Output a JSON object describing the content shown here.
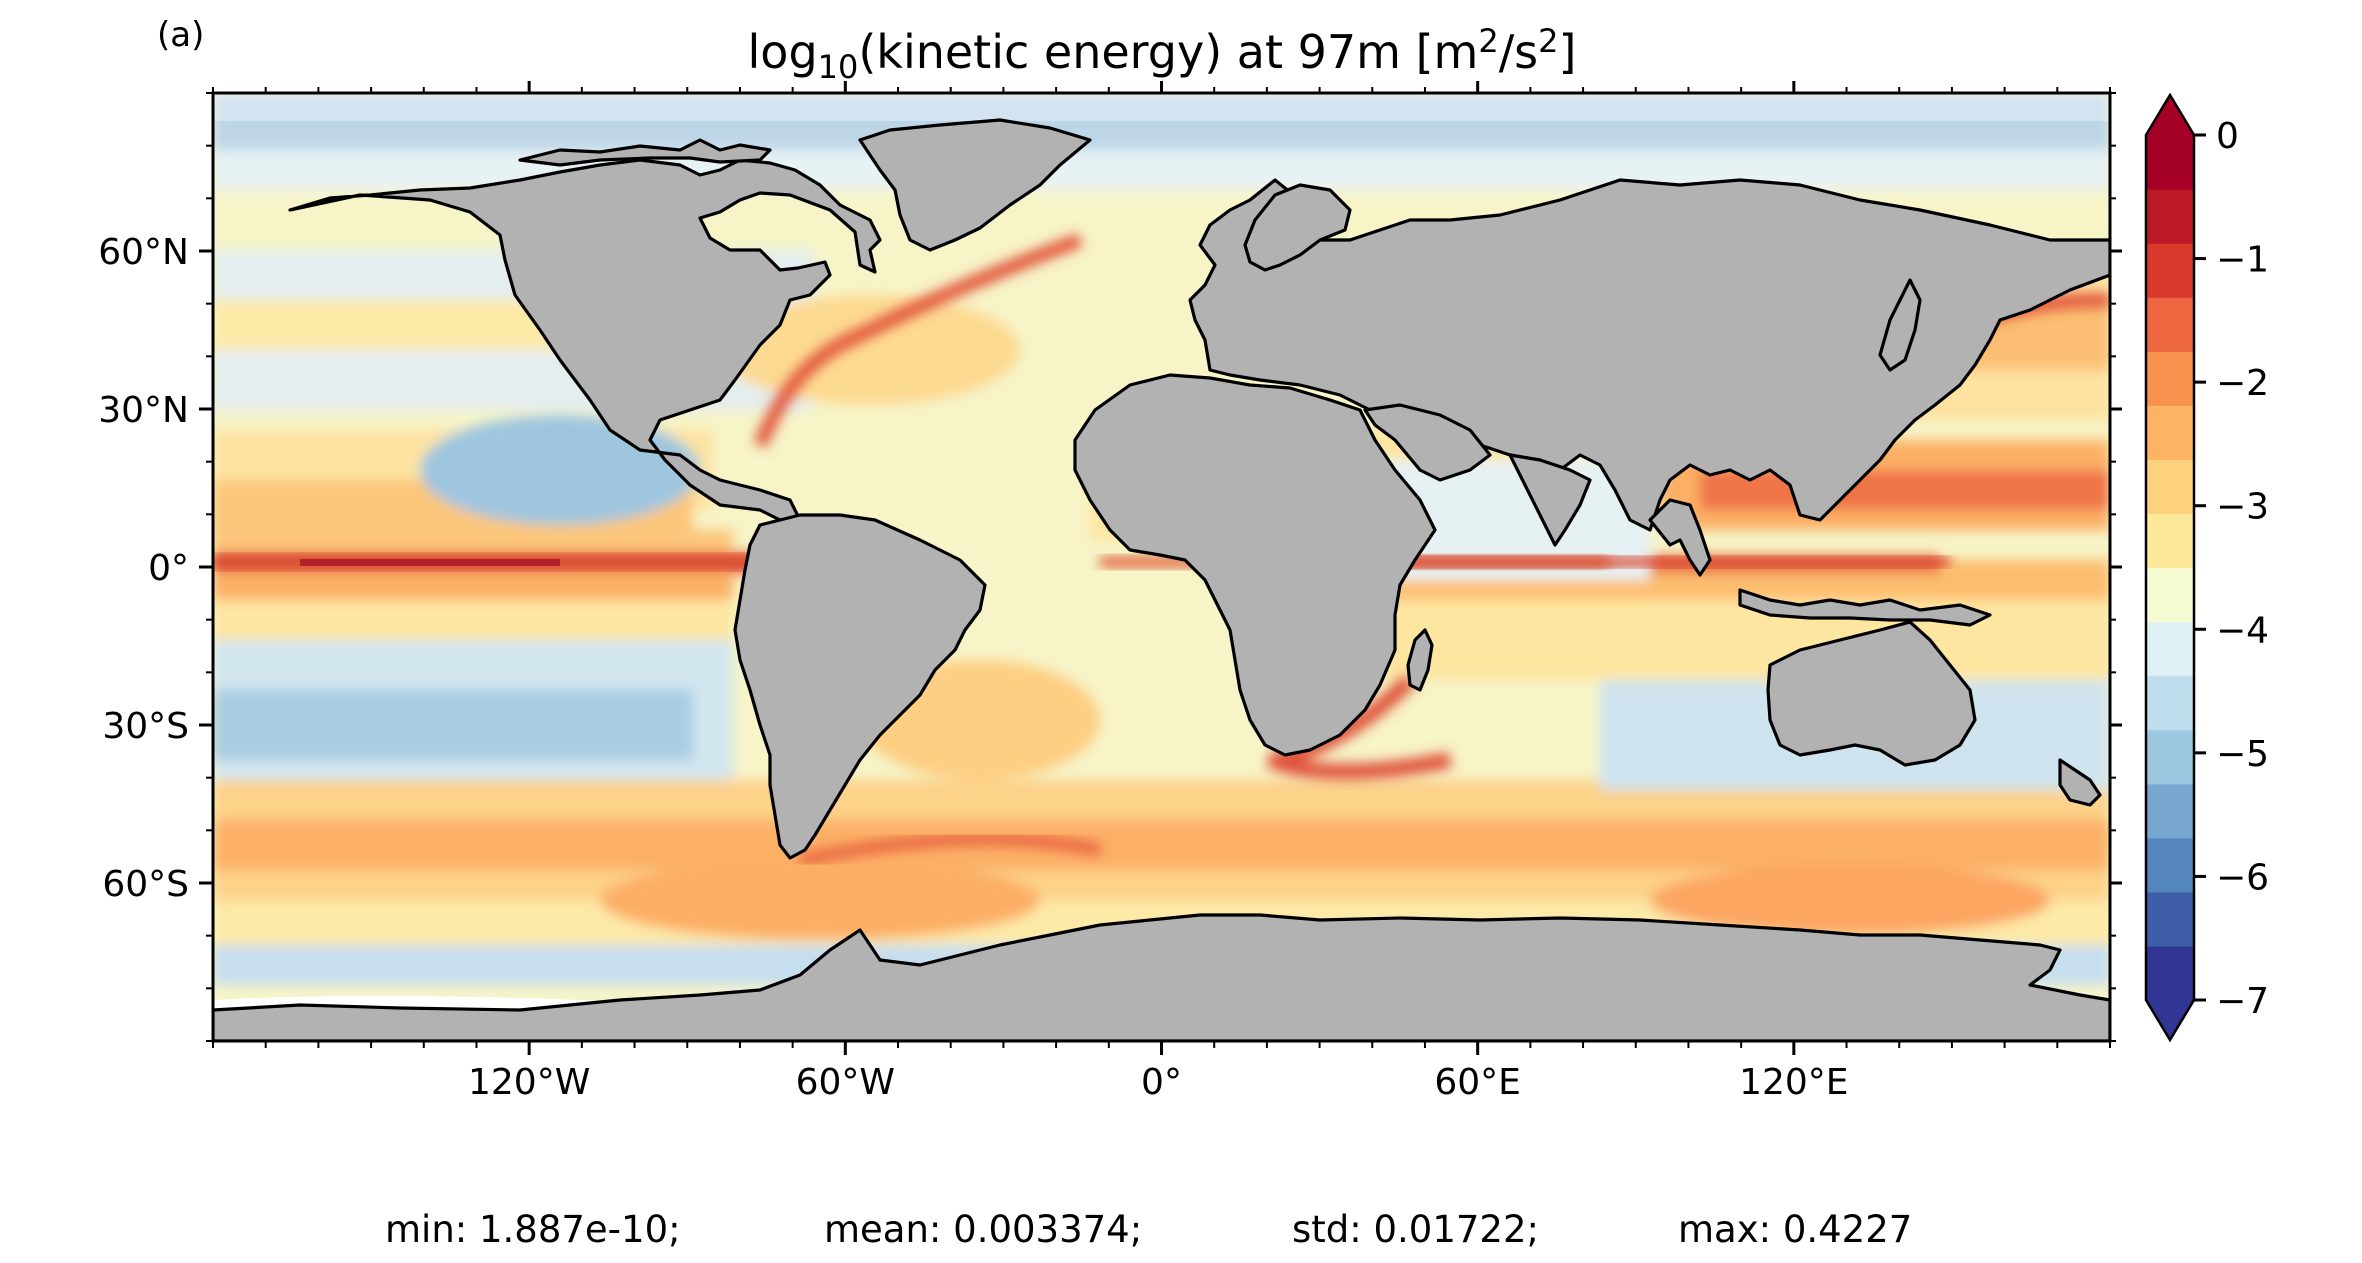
{
  "panel_label": "(a)",
  "title": {
    "prefix": "log",
    "sub": "10",
    "middle": "(kinetic energy) at 97m [m",
    "sup1": "2",
    "slash": "/s",
    "sup2": "2",
    "suffix": "]"
  },
  "map": {
    "projection": "plate-carree",
    "lon_range": [
      -180,
      180
    ],
    "lat_range": [
      -90,
      90
    ],
    "land_color": "#b2b2b2",
    "coast_color": "#000000",
    "lon_ticks": [
      {
        "value": -120,
        "label": "120°W"
      },
      {
        "value": -60,
        "label": "60°W"
      },
      {
        "value": 0,
        "label": "0°"
      },
      {
        "value": 60,
        "label": "60°E"
      },
      {
        "value": 120,
        "label": "120°E"
      }
    ],
    "lat_ticks": [
      {
        "value": 60,
        "label": "60°N"
      },
      {
        "value": 30,
        "label": "30°N"
      },
      {
        "value": 0,
        "label": "0°"
      },
      {
        "value": -30,
        "label": "30°S"
      },
      {
        "value": -60,
        "label": "60°S"
      }
    ]
  },
  "colorbar": {
    "range": [
      -7,
      0
    ],
    "extend": "both",
    "tick_labels": [
      {
        "value": 0,
        "label": "0"
      },
      {
        "value": -1,
        "label": "−1"
      },
      {
        "value": -2,
        "label": "−2"
      },
      {
        "value": -3,
        "label": "−3"
      },
      {
        "value": -4,
        "label": "−4"
      },
      {
        "value": -5,
        "label": "−5"
      },
      {
        "value": -6,
        "label": "−6"
      },
      {
        "value": -7,
        "label": "−7"
      }
    ],
    "colors": [
      "#313695",
      "#3e5fa8",
      "#5585bd",
      "#77a7cf",
      "#9dc6e0",
      "#c0dded",
      "#e0f1f6",
      "#f5fbd3",
      "#fee89a",
      "#fdd27e",
      "#fcb362",
      "#f8904e",
      "#ed6740",
      "#d93a2c",
      "#bd1a28",
      "#a50026"
    ]
  },
  "stats": {
    "min": "min: 1.887e-10;",
    "mean": "mean: 0.003374;",
    "std": "std: 0.01722;",
    "max": "max: 0.4227"
  }
}
